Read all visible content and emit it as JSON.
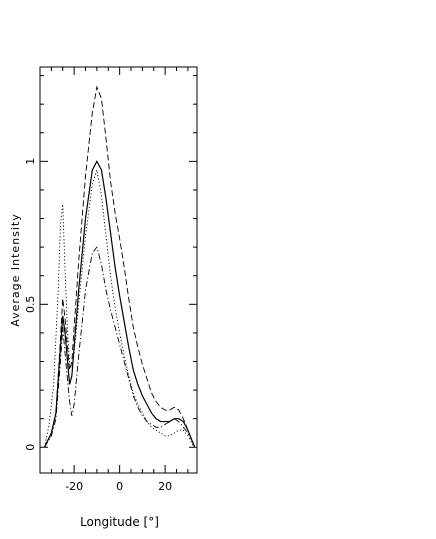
{
  "chart_data": {
    "type": "line",
    "xlabel": "Longitude [°]",
    "ylabel": "Average Intensity",
    "xlim": [
      -35,
      34
    ],
    "ylim": [
      -0.09,
      1.33
    ],
    "x_ticks": [
      -20,
      0,
      20
    ],
    "x_tick_labels": [
      "-20",
      "0",
      "20"
    ],
    "y_ticks": [
      0,
      0.5,
      1
    ],
    "y_tick_labels": [
      "0",
      "0.5",
      "1"
    ],
    "grid": false,
    "legend": "none",
    "series": [
      {
        "style": "solid",
        "x": [
          -33,
          -30,
          -28,
          -26,
          -25,
          -24,
          -22,
          -21,
          -20,
          -18,
          -15,
          -12,
          -10,
          -8,
          -6,
          -4,
          -2,
          0,
          2,
          4,
          6,
          8,
          10,
          12,
          14,
          16,
          18,
          20,
          22,
          24,
          26,
          28,
          30,
          32,
          33
        ],
        "y": [
          0.0,
          0.05,
          0.12,
          0.35,
          0.46,
          0.4,
          0.22,
          0.25,
          0.35,
          0.55,
          0.8,
          0.97,
          1.0,
          0.97,
          0.87,
          0.75,
          0.63,
          0.53,
          0.44,
          0.35,
          0.27,
          0.22,
          0.18,
          0.15,
          0.12,
          0.1,
          0.09,
          0.09,
          0.09,
          0.1,
          0.1,
          0.09,
          0.06,
          0.02,
          0.0
        ]
      },
      {
        "style": "dashed",
        "x": [
          -33,
          -30,
          -28,
          -26,
          -25,
          -24,
          -22,
          -21,
          -20,
          -18,
          -15,
          -12,
          -10,
          -8,
          -6,
          -4,
          -2,
          0,
          2,
          4,
          6,
          8,
          10,
          12,
          14,
          16,
          18,
          20,
          22,
          24,
          26,
          28,
          30,
          32,
          33
        ],
        "y": [
          0.0,
          0.05,
          0.12,
          0.38,
          0.52,
          0.45,
          0.27,
          0.3,
          0.42,
          0.65,
          0.95,
          1.17,
          1.26,
          1.22,
          1.08,
          0.93,
          0.82,
          0.73,
          0.63,
          0.52,
          0.42,
          0.35,
          0.29,
          0.24,
          0.19,
          0.16,
          0.14,
          0.13,
          0.13,
          0.14,
          0.13,
          0.1,
          0.06,
          0.02,
          0.0
        ]
      },
      {
        "style": "dotted",
        "x": [
          -33,
          -31,
          -29,
          -27,
          -26,
          -25,
          -24,
          -23,
          -22,
          -21,
          -20,
          -18,
          -15,
          -12,
          -10,
          -8,
          -6,
          -4,
          -2,
          0,
          2,
          4,
          6,
          8,
          10,
          12,
          14,
          16,
          18,
          20,
          22,
          24,
          26,
          28,
          30,
          32,
          33
        ],
        "y": [
          0.0,
          0.08,
          0.22,
          0.55,
          0.78,
          0.85,
          0.62,
          0.42,
          0.3,
          0.28,
          0.33,
          0.5,
          0.74,
          0.92,
          0.97,
          0.88,
          0.74,
          0.6,
          0.49,
          0.4,
          0.32,
          0.25,
          0.19,
          0.15,
          0.12,
          0.09,
          0.07,
          0.06,
          0.05,
          0.04,
          0.04,
          0.05,
          0.06,
          0.06,
          0.04,
          0.01,
          0.0
        ]
      },
      {
        "style": "dash-dot",
        "x": [
          -33,
          -30,
          -28,
          -26,
          -25,
          -24,
          -22,
          -21,
          -20,
          -18,
          -15,
          -12,
          -10,
          -8,
          -6,
          -4,
          -2,
          0,
          2,
          4,
          6,
          8,
          10,
          12,
          14,
          16,
          18,
          20,
          22,
          24,
          26,
          28,
          30,
          32,
          33
        ],
        "y": [
          0.0,
          0.04,
          0.1,
          0.3,
          0.42,
          0.33,
          0.16,
          0.11,
          0.15,
          0.32,
          0.55,
          0.68,
          0.7,
          0.64,
          0.55,
          0.48,
          0.42,
          0.36,
          0.3,
          0.24,
          0.18,
          0.14,
          0.11,
          0.09,
          0.08,
          0.07,
          0.07,
          0.08,
          0.09,
          0.1,
          0.09,
          0.07,
          0.05,
          0.02,
          0.0
        ]
      }
    ]
  }
}
